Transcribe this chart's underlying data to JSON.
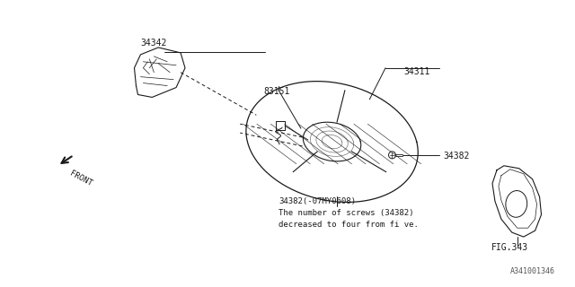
{
  "bg_color": "#ffffff",
  "line_color": "#1a1a1a",
  "text_color": "#1a1a1a",
  "figsize": [
    6.4,
    3.2
  ],
  "dpi": 100,
  "watermark": "A341001346",
  "label_34342": "34342",
  "label_83151": "83151",
  "label_34311": "34311",
  "label_34382": "34382",
  "label_fig343": "FIG.343",
  "note_line1": "34382(-07MY0608)",
  "note_line2": "The number of screws (34382)",
  "note_line3": "decreased to four from fi ve.",
  "front_label": "FRONT",
  "label_fontsize": 7,
  "note_fontsize": 6.5
}
